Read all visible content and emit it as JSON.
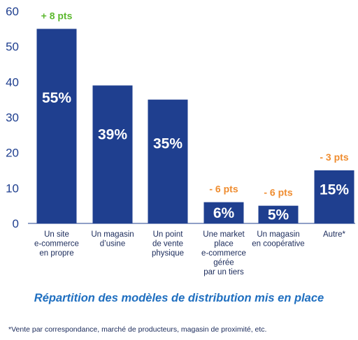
{
  "chart_data": {
    "type": "bar",
    "ylim": [
      0,
      60
    ],
    "yticks": [
      "0",
      "10",
      "20",
      "30",
      "40",
      "50",
      "60"
    ],
    "grid": false,
    "categories": [
      [
        "Un site",
        "e-commerce",
        "en propre"
      ],
      [
        "Un magasin",
        "d’usine"
      ],
      [
        "Un point",
        "de vente",
        "physique"
      ],
      [
        "Une market",
        "place",
        "e-commerce",
        "gérée",
        "par un tiers"
      ],
      [
        "Un magasin",
        "en coopérative"
      ],
      [
        "Autre*"
      ]
    ],
    "values": [
      55,
      39,
      35,
      6,
      5,
      15
    ],
    "value_labels": [
      "55%",
      "39%",
      "35%",
      "6%",
      "5%",
      "15%"
    ],
    "changes": [
      "+ 8 pts",
      "",
      "",
      "- 6 pts",
      "- 6 pts",
      "- 3 pts"
    ],
    "title": "Répartition des modèles de distribution mis en place",
    "footnote": "*Vente par correspondance, marché de producteurs, magasin de proximité, etc."
  },
  "colors": {
    "bar": "#1f3f8f",
    "positive": "#5cb82f",
    "negative": "#ef8c2f",
    "title": "#1f6fc0"
  }
}
